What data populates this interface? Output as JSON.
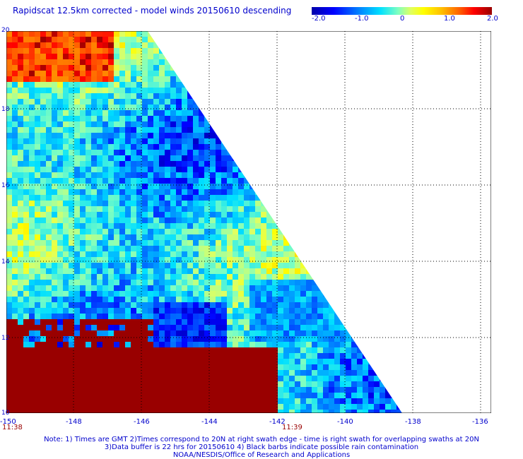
{
  "title": "Rapidscat 12.5km corrected - model winds 20150610 descending",
  "colorbar": {
    "labels": [
      "-2.0",
      "-1.0",
      "0",
      "1.0",
      "2.0"
    ],
    "min": -2.0,
    "max": 2.0
  },
  "map": {
    "lon_ticks": [
      "-150",
      "-148",
      "-146",
      "-144",
      "-142",
      "-140",
      "-138",
      "-136"
    ],
    "lat_ticks": [
      "20",
      "18",
      "16",
      "14",
      "12",
      "10"
    ],
    "lon_range": [
      -150,
      -135
    ],
    "lat_range": [
      10,
      20
    ]
  },
  "times": [
    "11:38",
    "11:39"
  ],
  "notes": [
    "Note: 1) Times are GMT 2)Times correspond to 20N at right swath edge - time is right swath for overlapping swaths at 20N",
    "3)Data buffer is 22 hrs for 20150610 4) Black barbs indicate possible rain contamination",
    "NOAA/NESDIS/Office of Research and Applications"
  ]
}
